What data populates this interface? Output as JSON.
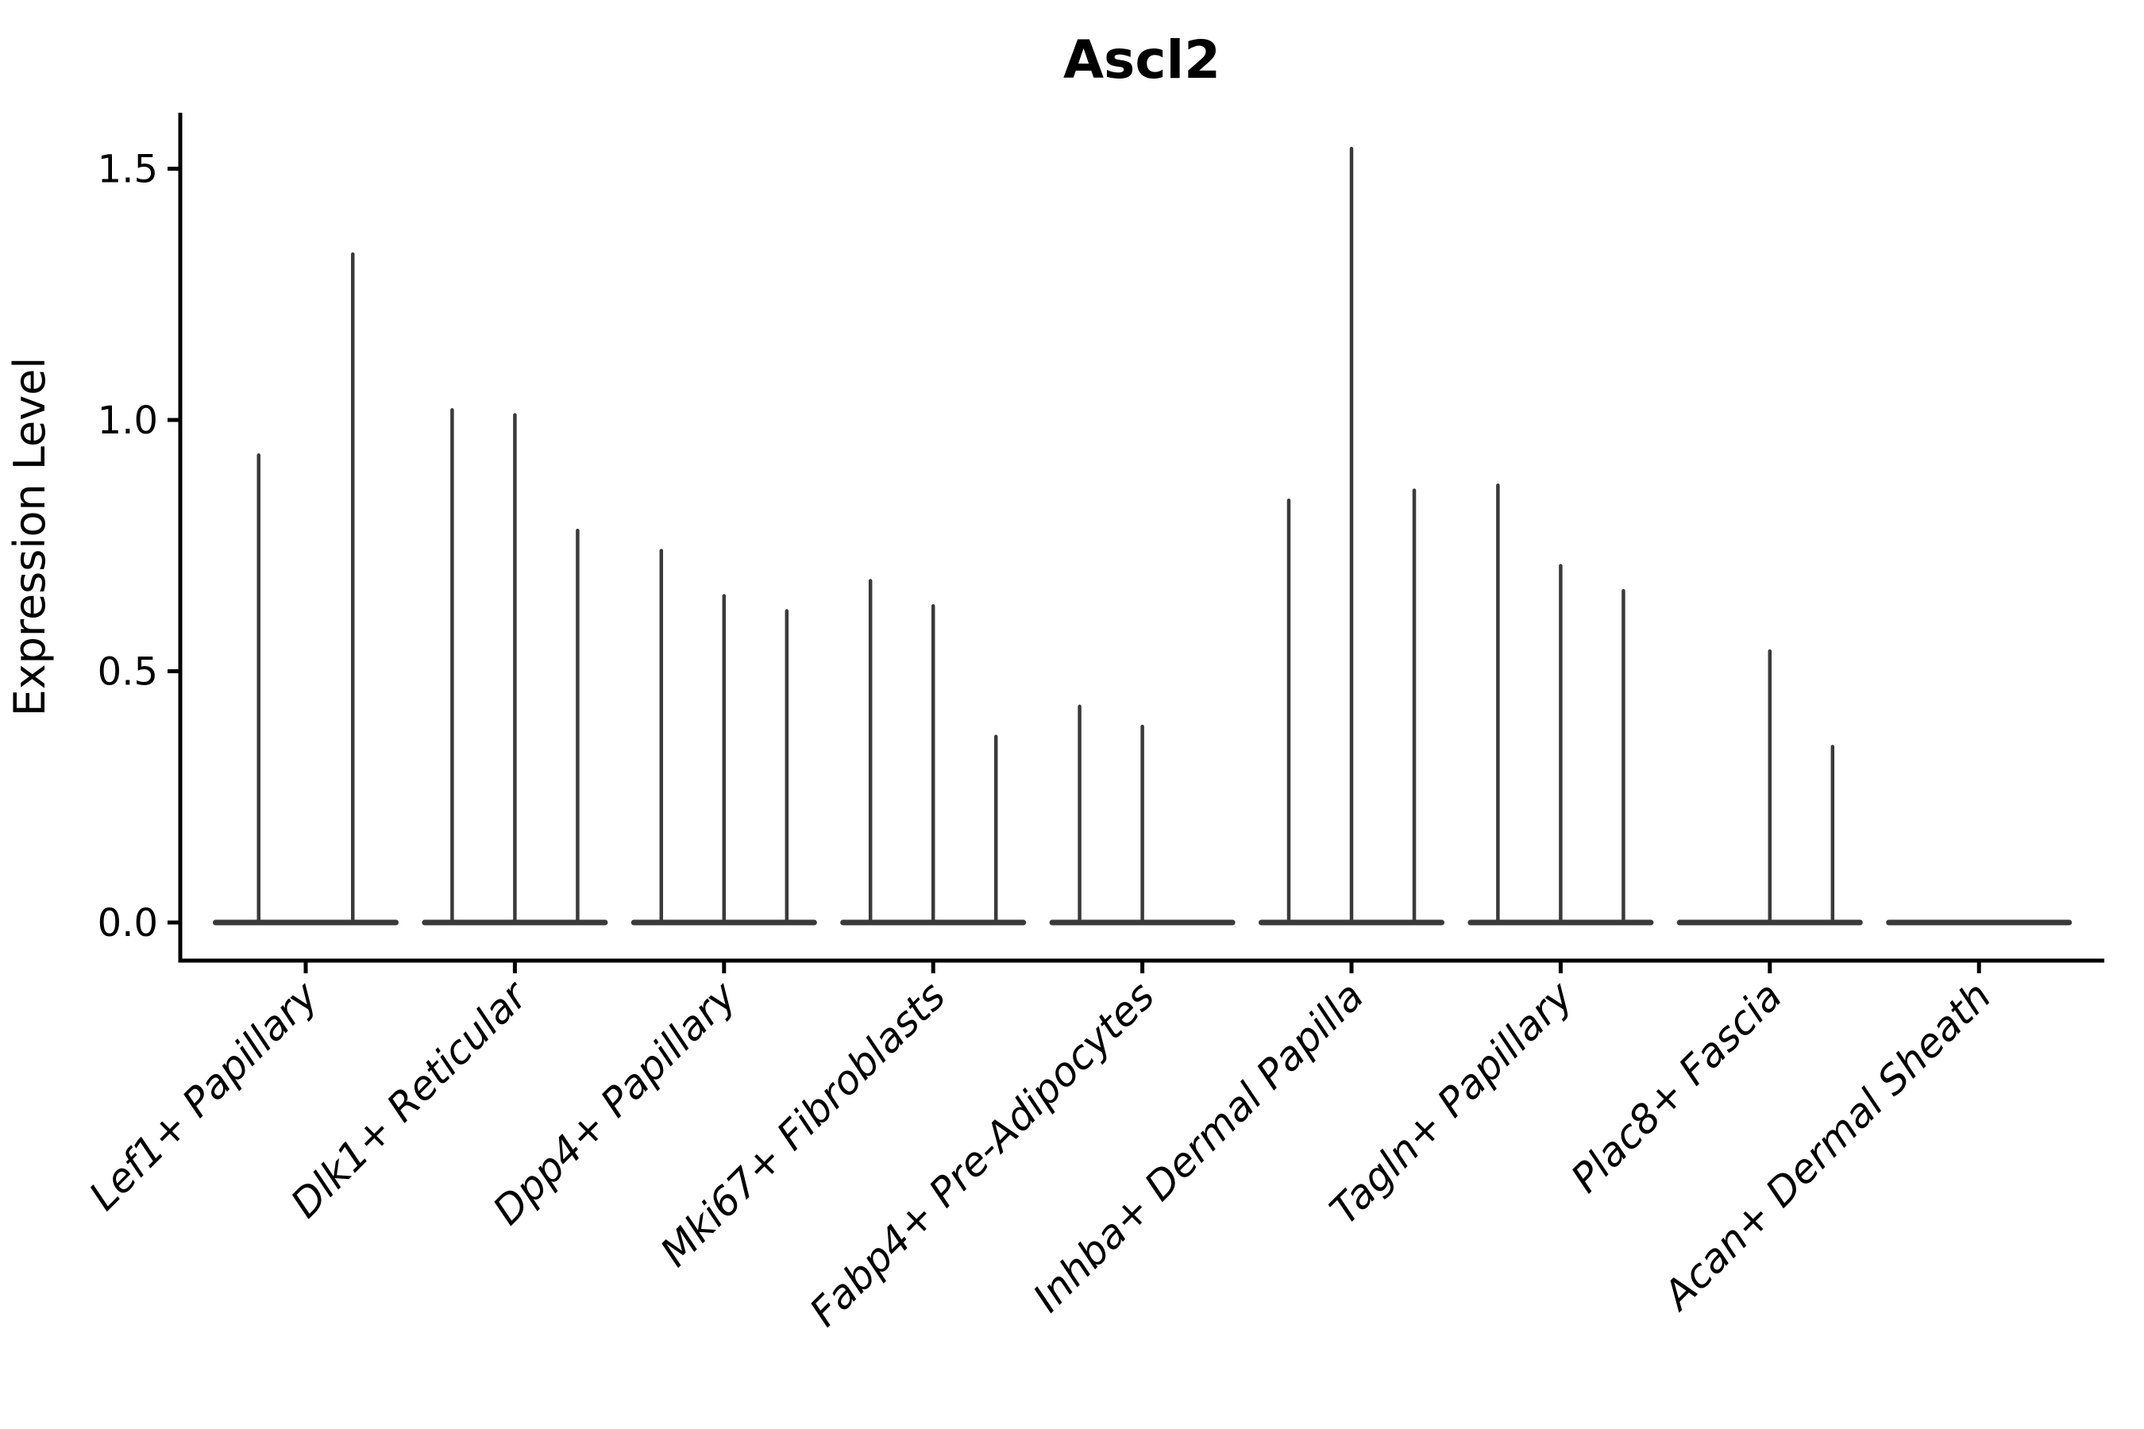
{
  "chart_data": {
    "type": "violin",
    "title": "Ascl2",
    "ylabel": "Expression Level",
    "xlabel": "",
    "ylim": [
      0,
      1.65
    ],
    "yticks": [
      0,
      0.5,
      1.0,
      1.5
    ],
    "ytick_labels": [
      "0.0",
      "0.5",
      "1.0",
      "1.5"
    ],
    "grid": "off",
    "legend": "none",
    "categories": [
      "Lef1+ Papillary",
      "Dlk1+ Reticular",
      "Dpp4+ Papillary",
      "Mki67+ Fibroblasts",
      "Fabp4+ Pre-Adipocytes",
      "Inhba+ Dermal Papilla",
      "Tagln+ Papillary",
      "Plac8+ Fascia",
      "Acan+ Dermal Sheath"
    ],
    "violins": [
      {
        "category": "Lef1+ Papillary",
        "base_halfwidth": 0.45,
        "spikes": [
          {
            "offset": -0.225,
            "max": 0.93
          },
          {
            "offset": 0.225,
            "max": 1.33
          }
        ]
      },
      {
        "category": "Dlk1+ Reticular",
        "base_halfwidth": 0.45,
        "spikes": [
          {
            "offset": -0.3,
            "max": 1.02
          },
          {
            "offset": 0.0,
            "max": 1.01
          },
          {
            "offset": 0.3,
            "max": 0.78
          }
        ]
      },
      {
        "category": "Dpp4+ Papillary",
        "base_halfwidth": 0.45,
        "spikes": [
          {
            "offset": -0.3,
            "max": 0.74
          },
          {
            "offset": 0.0,
            "max": 0.65
          },
          {
            "offset": 0.3,
            "max": 0.62
          }
        ]
      },
      {
        "category": "Mki67+ Fibroblasts",
        "base_halfwidth": 0.45,
        "spikes": [
          {
            "offset": -0.3,
            "max": 0.68
          },
          {
            "offset": 0.0,
            "max": 0.63
          },
          {
            "offset": 0.3,
            "max": 0.37
          }
        ]
      },
      {
        "category": "Fabp4+ Pre-Adipocytes",
        "base_halfwidth": 0.45,
        "spikes": [
          {
            "offset": -0.3,
            "max": 0.43
          },
          {
            "offset": 0.0,
            "max": 0.39
          }
        ]
      },
      {
        "category": "Inhba+ Dermal Papilla",
        "base_halfwidth": 0.45,
        "spikes": [
          {
            "offset": -0.3,
            "max": 0.84
          },
          {
            "offset": 0.0,
            "max": 1.54
          },
          {
            "offset": 0.3,
            "max": 0.86
          }
        ]
      },
      {
        "category": "Tagln+ Papillary",
        "base_halfwidth": 0.45,
        "spikes": [
          {
            "offset": -0.3,
            "max": 0.87
          },
          {
            "offset": 0.0,
            "max": 0.71
          },
          {
            "offset": 0.3,
            "max": 0.66
          }
        ]
      },
      {
        "category": "Plac8+ Fascia",
        "base_halfwidth": 0.45,
        "spikes": [
          {
            "offset": 0.0,
            "max": 0.54
          },
          {
            "offset": 0.3,
            "max": 0.35
          }
        ]
      },
      {
        "category": "Acan+ Dermal Sheath",
        "base_halfwidth": 0.45,
        "spikes": []
      }
    ],
    "colors": {
      "violin_line": "#3a3a3a",
      "axis": "#000000",
      "background": "#ffffff"
    }
  }
}
